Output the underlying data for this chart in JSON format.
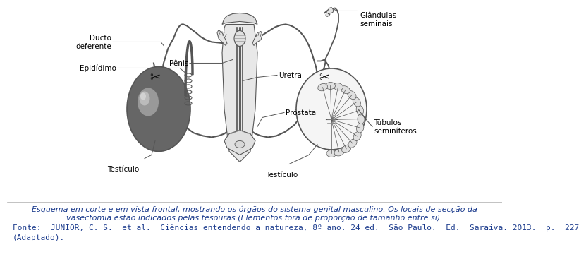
{
  "background_color": "#ffffff",
  "caption_line1": "  Esquema em corte e em vista frontal, mostrando os órgãos do sistema genital masculino. Os locais de secção da",
  "caption_line2": "vasectomia estão indicados pelas tesouras (Elementos fora de proporção de tamanho entre si).",
  "caption_line3": "Fonte:  JUNIOR, C. S.  et al.  Ciências entendendo a natureza, 8º ano. 24 ed.  São Paulo.  Ed.  Saraiva. 2013.  p.  227",
  "caption_line4": "(Adaptado).",
  "caption_fontsize": 8.0,
  "fonte_fontsize": 8.0,
  "caption_color": "#1a3a8c",
  "label_fontsize": 7.5,
  "label_color": "#000000",
  "line_color": "#555555",
  "anatomy_color": "#cccccc",
  "dark_gray": "#555555",
  "mid_gray": "#888888",
  "light_gray": "#cccccc",
  "very_light": "#eeeeee",
  "black": "#111111"
}
